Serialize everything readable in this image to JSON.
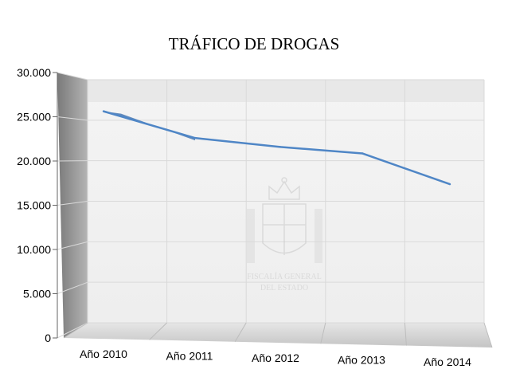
{
  "chart_data": {
    "type": "line",
    "title": "TRÁFICO DE DROGAS",
    "categories": [
      "Año 2010",
      "Año 2011",
      "Año 2012",
      "Año 2013",
      "Año 2014"
    ],
    "series": [
      {
        "values": [
          26300,
          23000,
          21900,
          21100,
          17300
        ]
      }
    ],
    "ylim": [
      0,
      30000
    ],
    "yticks": [
      "0",
      "5.000",
      "10.000",
      "15.000",
      "20.000",
      "25.000",
      "30.000"
    ],
    "grid": true,
    "legend": "none",
    "colors": {
      "line": "#4f86c6",
      "grid": "#d9d9d9",
      "back_wall": "#f2f2f2",
      "side_wall": "#8c8c8c",
      "floor": "#d4d4d4"
    }
  },
  "watermark": {
    "line1": "FISCALÍA GENERAL",
    "line2": "DEL ESTADO"
  }
}
